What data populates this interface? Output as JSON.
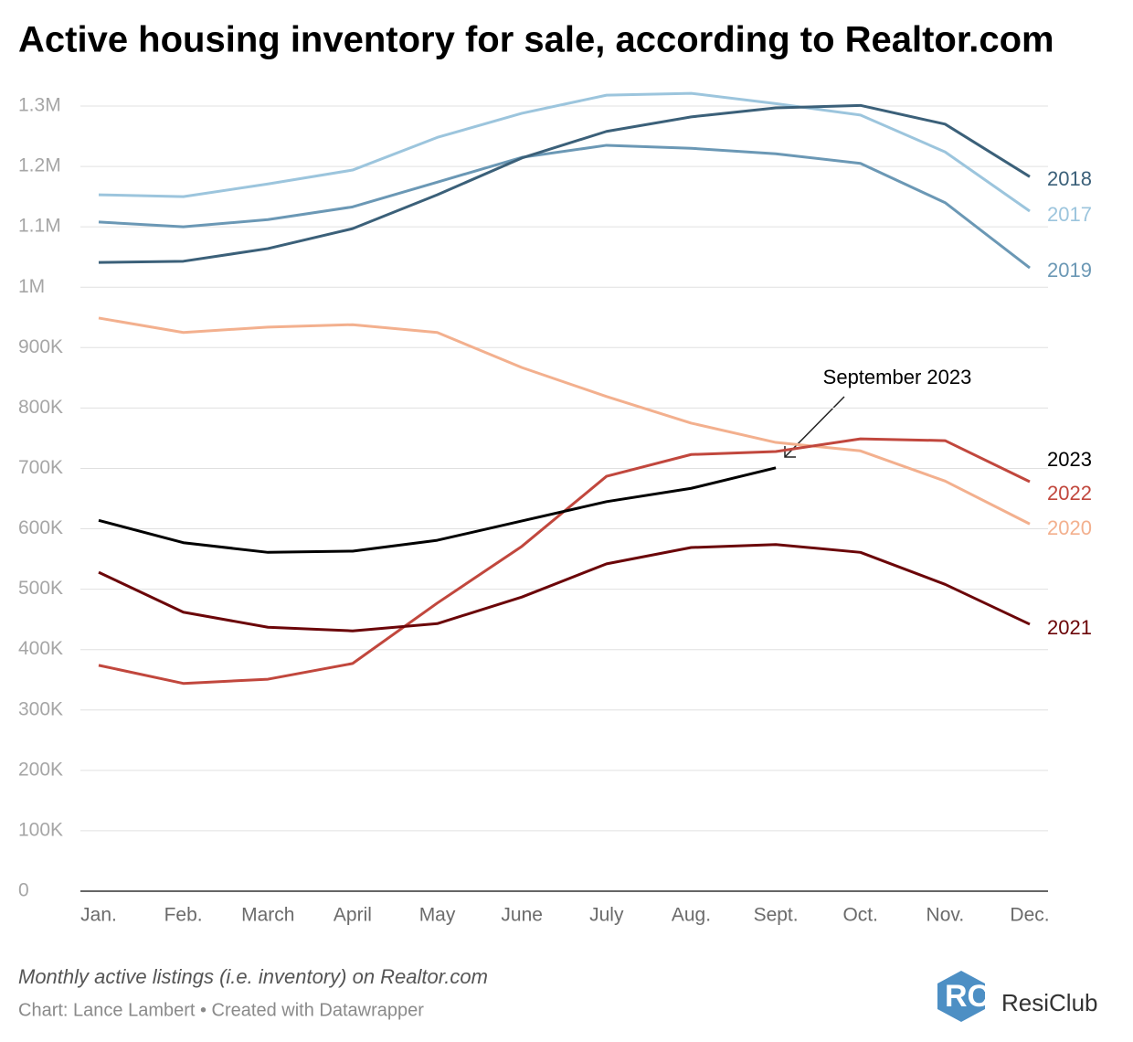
{
  "chart_data": {
    "type": "line",
    "title": "Active housing inventory for sale, according to Realtor.com",
    "subtitle": "Monthly active listings (i.e. inventory) on Realtor.com",
    "source": "Chart: Lance Lambert • Created with Datawrapper",
    "brand": "ResiClub",
    "annotation": "September 2023",
    "categories": [
      "Jan.",
      "Feb.",
      "March",
      "April",
      "May",
      "June",
      "July",
      "Aug.",
      "Sept.",
      "Oct.",
      "Nov.",
      "Dec."
    ],
    "ylim": [
      0,
      1300000
    ],
    "yticks": [
      0,
      {
        "value": 100000,
        "label": "100K"
      },
      {
        "value": 200000,
        "label": "200K"
      },
      {
        "value": 300000,
        "label": "300K"
      },
      {
        "value": 400000,
        "label": "400K"
      },
      {
        "value": 500000,
        "label": "500K"
      },
      {
        "value": 600000,
        "label": "600K"
      },
      {
        "value": 700000,
        "label": "700K"
      },
      {
        "value": 800000,
        "label": "800K"
      },
      {
        "value": 900000,
        "label": "900K"
      },
      {
        "value": 1000000,
        "label": "1M"
      },
      {
        "value": 1100000,
        "label": "1.1M"
      },
      {
        "value": 1200000,
        "label": "1.2M"
      },
      {
        "value": 1300000,
        "label": "1.3M"
      }
    ],
    "grid": true,
    "series": [
      {
        "name": "2017",
        "color": "#9cc5dd",
        "values": [
          1153000,
          1150000,
          1171000,
          1194000,
          1248000,
          1288000,
          1318000,
          1321000,
          1304000,
          1285000,
          1224000,
          1126000
        ]
      },
      {
        "name": "2019",
        "color": "#6b98b5",
        "values": [
          1108000,
          1100000,
          1112000,
          1133000,
          1174000,
          1215000,
          1235000,
          1230000,
          1221000,
          1205000,
          1140000,
          1032000
        ]
      },
      {
        "name": "2018",
        "color": "#3b6079",
        "values": [
          1041000,
          1043000,
          1064000,
          1097000,
          1153000,
          1214000,
          1258000,
          1282000,
          1297000,
          1301000,
          1270000,
          1183000
        ]
      },
      {
        "name": "2020",
        "color": "#f3b08e",
        "values": [
          949000,
          925000,
          934000,
          938000,
          925000,
          867000,
          819000,
          775000,
          743000,
          729000,
          679000,
          608000
        ]
      },
      {
        "name": "2022",
        "color": "#c1473d",
        "values": [
          374000,
          344000,
          351000,
          377000,
          477000,
          571000,
          687000,
          723000,
          728000,
          749000,
          746000,
          678000
        ]
      },
      {
        "name": "2021",
        "color": "#6b0508",
        "values": [
          528000,
          462000,
          437000,
          431000,
          443000,
          487000,
          542000,
          569000,
          574000,
          561000,
          508000,
          442000
        ]
      },
      {
        "name": "2023",
        "color": "#000000",
        "values": [
          614000,
          577000,
          561000,
          563000,
          581000,
          613000,
          645000,
          667000,
          701000,
          null,
          null,
          null
        ]
      }
    ]
  }
}
